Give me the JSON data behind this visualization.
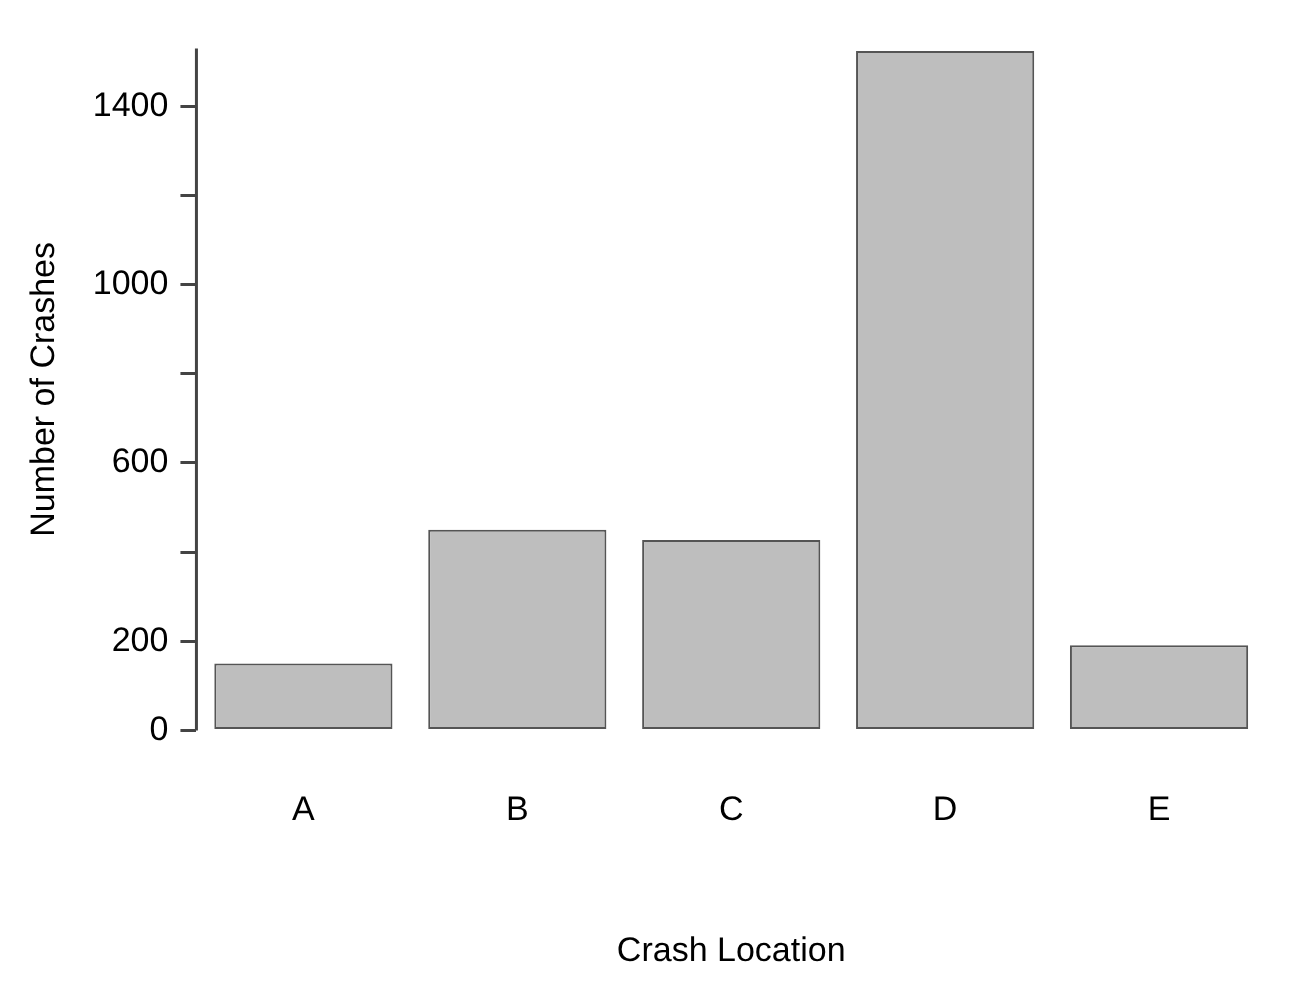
{
  "chart_data": {
    "type": "bar",
    "xlabel": "Crash Location",
    "ylabel": "Number of Crashes",
    "categories": [
      "A",
      "B",
      "C",
      "D",
      "E"
    ],
    "values": [
      150,
      450,
      427,
      1524,
      191
    ],
    "color": "#bebebe",
    "ylim": [
      0,
      1530
    ],
    "yticks": [
      0,
      200,
      {
        "value": 400,
        "label": null
      },
      600,
      {
        "value": 800,
        "label": null
      },
      1000,
      {
        "value": 1200,
        "label": null
      },
      1400
    ],
    "grid": false,
    "legend": false
  }
}
